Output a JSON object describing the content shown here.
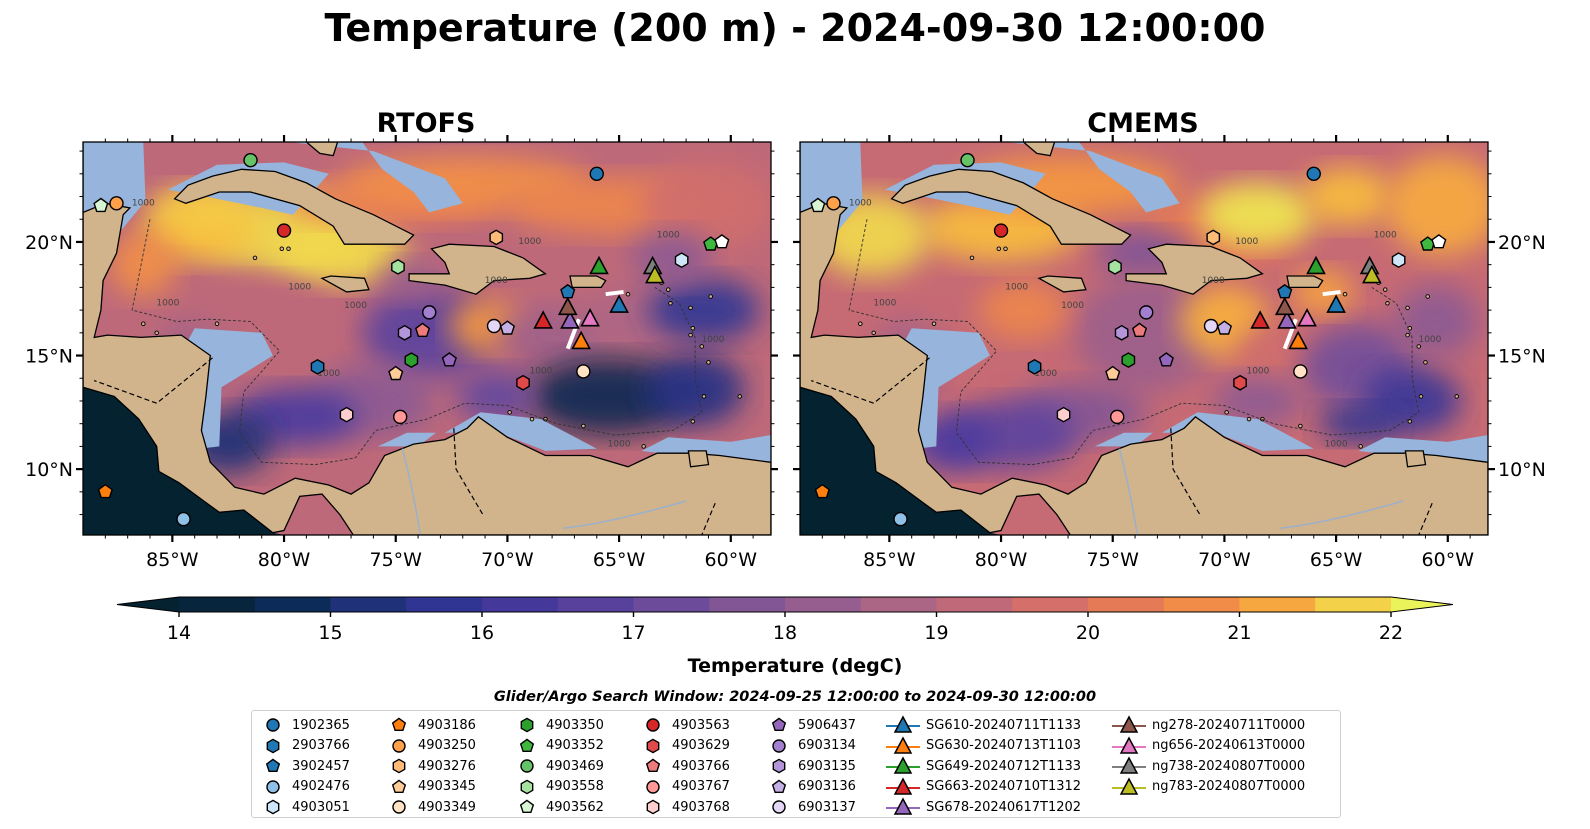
{
  "figure": {
    "title": "Temperature (200 m) - 2024-09-30 12:00:00",
    "legend_title": "Glider/Argo Search Window: 2024-09-25 12:00:00 to 2024-09-30 12:00:00"
  },
  "chart_data": {
    "type": "heatmap",
    "variable": "Temperature (200 m)",
    "valid_time": "2024-09-30 12:00:00",
    "panels": [
      {
        "title": "RTOFS"
      },
      {
        "title": "CMEMS"
      }
    ],
    "x_ticks": [
      "85°W",
      "80°W",
      "75°W",
      "70°W",
      "65°W",
      "60°W"
    ],
    "x_tick_values": [
      -85,
      -80,
      -75,
      -70,
      -65,
      -60
    ],
    "y_ticks": [
      "20°N",
      "15°N",
      "10°N"
    ],
    "y_tick_values": [
      20,
      15,
      10
    ],
    "xlim": [
      -89,
      -58.2
    ],
    "ylim": [
      7.1,
      24.4
    ],
    "colorbar": {
      "label": "Temperature (degC)",
      "min": 14,
      "max": 22,
      "step": 0.5,
      "ticks": [
        "14",
        "15",
        "16",
        "17",
        "18",
        "19",
        "20",
        "21",
        "22"
      ],
      "tick_values": [
        14,
        15,
        16,
        17,
        18,
        19,
        20,
        21,
        22
      ],
      "extend": "both",
      "colormap": "thermal"
    },
    "contour_label": "1000",
    "colors": {
      "land": "#d2b48c",
      "shelf": "#96b4dc",
      "cold_region": "#04222f"
    },
    "argo_floats": [
      {
        "id": "1902365",
        "marker": "circle",
        "color": "#1f77b4",
        "lon": -66.0,
        "lat": 23.0
      },
      {
        "id": "2903766",
        "marker": "hexagon",
        "color": "#1f77b4",
        "lon": -78.5,
        "lat": 14.5
      },
      {
        "id": "3902457",
        "marker": "pentagon",
        "color": "#1f77b4",
        "lon": -67.3,
        "lat": 17.8
      },
      {
        "id": "4902476",
        "marker": "circle",
        "color": "#8fc1e8",
        "lon": -84.5,
        "lat": 7.8
      },
      {
        "id": "4903051",
        "marker": "hexagon",
        "color": "#cfe6f8",
        "lon": -62.2,
        "lat": 19.2
      },
      {
        "id": "4903186",
        "marker": "pentagon",
        "color": "#ff7f0e",
        "lon": -88.0,
        "lat": 9.0
      },
      {
        "id": "4903250",
        "marker": "circle",
        "color": "#ffa04a",
        "lon": -87.5,
        "lat": 21.7
      },
      {
        "id": "4903276",
        "marker": "hexagon",
        "color": "#ffbb78",
        "lon": -70.5,
        "lat": 20.2
      },
      {
        "id": "4903345",
        "marker": "pentagon",
        "color": "#ffcc99",
        "lon": -75.0,
        "lat": 14.2
      },
      {
        "id": "4903349",
        "marker": "circle",
        "color": "#ffe3c4",
        "lon": -66.6,
        "lat": 14.3
      },
      {
        "id": "4903350",
        "marker": "hexagon",
        "color": "#2ca02c",
        "lon": -74.3,
        "lat": 14.8
      },
      {
        "id": "4903352",
        "marker": "pentagon",
        "color": "#3fb83f",
        "lon": -60.9,
        "lat": 19.9
      },
      {
        "id": "4903469",
        "marker": "circle",
        "color": "#66c266",
        "lon": -81.5,
        "lat": 23.6
      },
      {
        "id": "4903558",
        "marker": "hexagon",
        "color": "#a6e3a0",
        "lon": -74.9,
        "lat": 18.9
      },
      {
        "id": "4903562",
        "marker": "pentagon",
        "color": "#d7f5d2",
        "lon": -88.2,
        "lat": 21.6
      },
      {
        "id": "4903563",
        "marker": "circle",
        "color": "#d62728",
        "lon": -80.0,
        "lat": 20.5
      },
      {
        "id": "4903629",
        "marker": "hexagon",
        "color": "#e04a4a",
        "lon": -69.3,
        "lat": 13.8
      },
      {
        "id": "4903766",
        "marker": "pentagon",
        "color": "#ee7b7b",
        "lon": -73.8,
        "lat": 16.1
      },
      {
        "id": "4903767",
        "marker": "circle",
        "color": "#ff9896",
        "lon": -74.8,
        "lat": 12.3
      },
      {
        "id": "4903768",
        "marker": "hexagon",
        "color": "#ffcfcf",
        "lon": -77.2,
        "lat": 12.4
      },
      {
        "id": "5906437",
        "marker": "pentagon",
        "color": "#9467bd",
        "lon": -72.6,
        "lat": 14.8
      },
      {
        "id": "6903134",
        "marker": "circle",
        "color": "#a27fcf",
        "lon": -73.5,
        "lat": 16.9
      },
      {
        "id": "6903135",
        "marker": "hexagon",
        "color": "#b595d9",
        "lon": -74.6,
        "lat": 16.0
      },
      {
        "id": "6903136",
        "marker": "pentagon",
        "color": "#c5b0e6",
        "lon": -70.0,
        "lat": 16.2
      },
      {
        "id": "6903137",
        "marker": "circle",
        "color": "#e4d6f5",
        "lon": -70.6,
        "lat": 16.3
      },
      {
        "id": "4903051b",
        "marker": "pentagon",
        "color": "#ffffff",
        "lon": -60.4,
        "lat": 20.0
      }
    ],
    "gliders": [
      {
        "id": "SG610-20240711T1133",
        "color": "#1f77b4",
        "lon": -65.0,
        "lat": 17.2
      },
      {
        "id": "SG630-20240713T1103",
        "color": "#ff7f0e",
        "lon": -66.7,
        "lat": 15.6
      },
      {
        "id": "SG649-20240712T1133",
        "color": "#2ca02c",
        "lon": -65.9,
        "lat": 18.9
      },
      {
        "id": "SG663-20240710T1312",
        "color": "#d62728",
        "lon": -68.4,
        "lat": 16.5
      },
      {
        "id": "SG678-20240617T1202",
        "color": "#9467bd",
        "lon": -67.2,
        "lat": 16.5
      },
      {
        "id": "ng278-20240711T0000",
        "color": "#8c564b",
        "lon": -67.3,
        "lat": 17.1
      },
      {
        "id": "ng656-20240613T0000",
        "color": "#e377c2",
        "lon": -66.3,
        "lat": 16.6
      },
      {
        "id": "ng738-20240807T0000",
        "color": "#7f7f7f",
        "lon": -63.5,
        "lat": 18.9
      },
      {
        "id": "ng783-20240807T0000",
        "color": "#bcbd22",
        "lon": -63.4,
        "lat": 18.5
      }
    ]
  }
}
